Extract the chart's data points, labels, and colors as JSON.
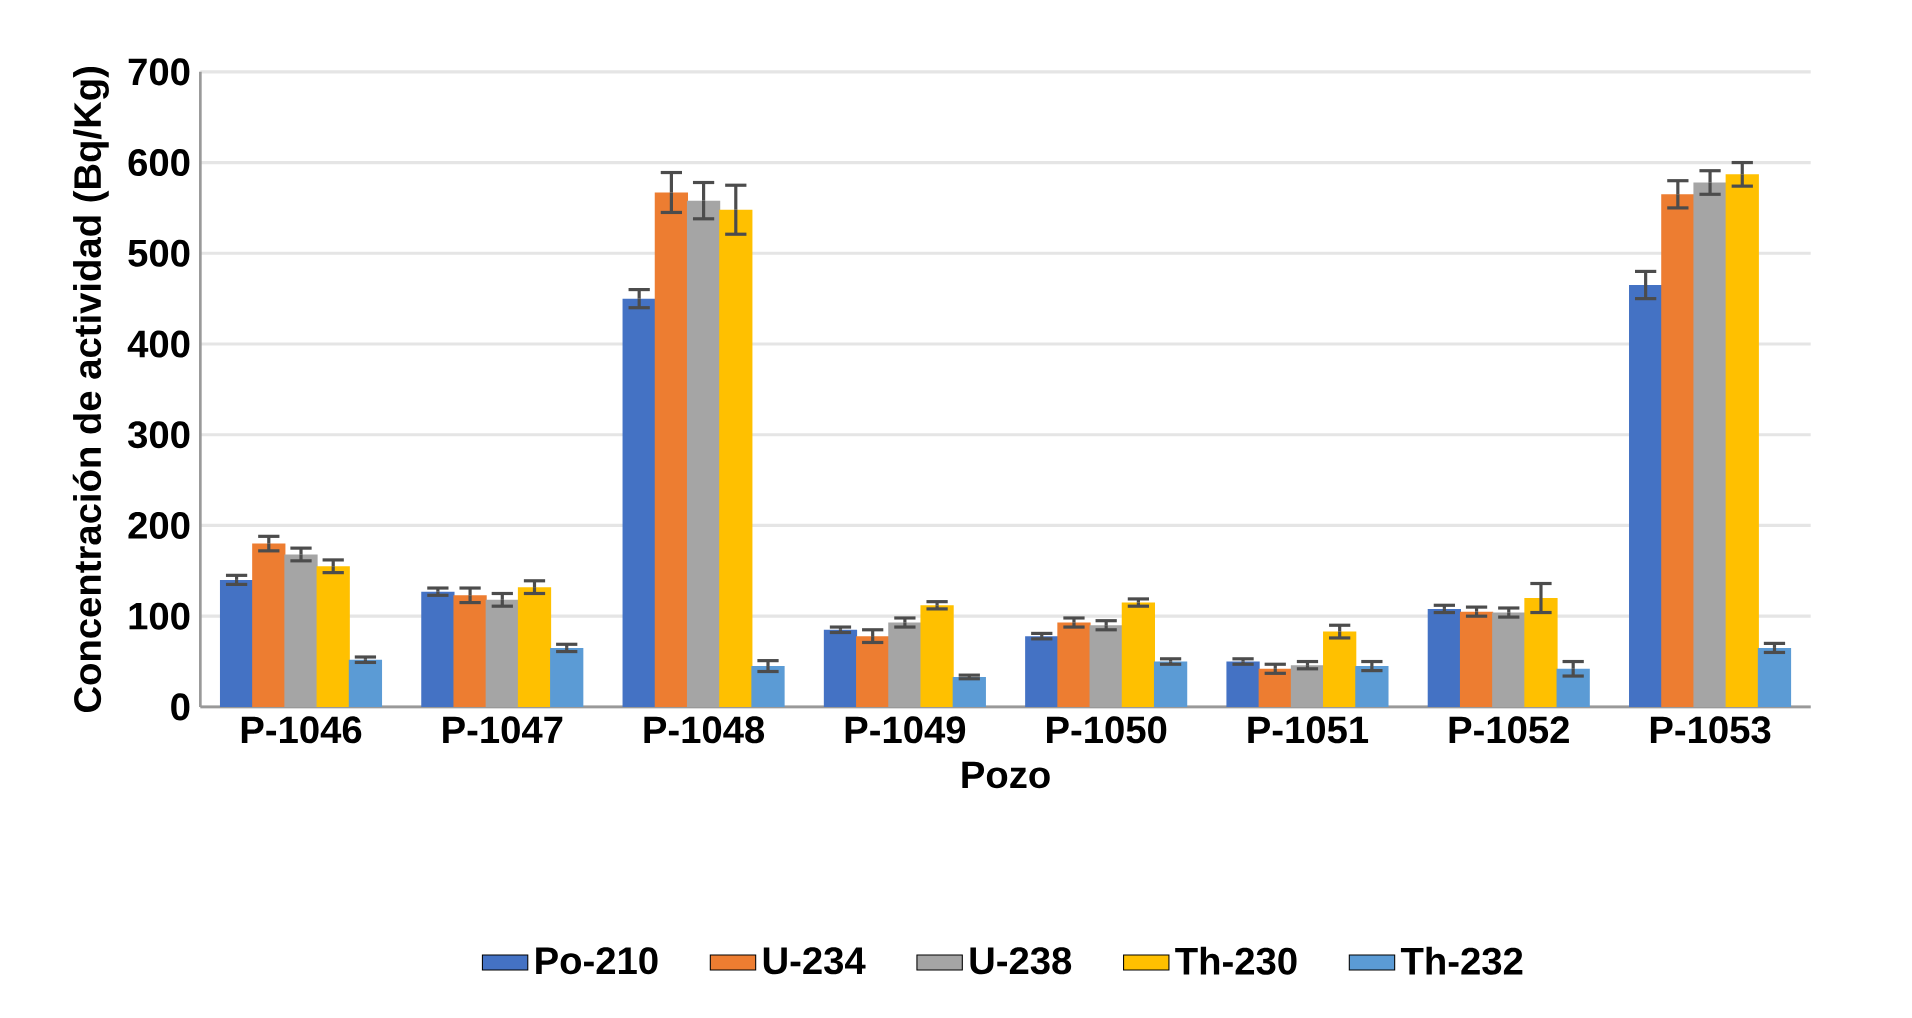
{
  "chart_data": {
    "type": "bar",
    "xlabel": "Pozo",
    "ylabel": "Concentración de actividad (Bq/Kg)",
    "categories": [
      "P-1046",
      "P-1047",
      "P-1048",
      "P-1049",
      "P-1050",
      "P-1051",
      "P-1052",
      "P-1053"
    ],
    "series": [
      {
        "name": "Po-210",
        "color": "#4472c4",
        "values": [
          140,
          127,
          450,
          85,
          78,
          50,
          108,
          465
        ],
        "errors": [
          5,
          4,
          10,
          3,
          3,
          3,
          4,
          15
        ]
      },
      {
        "name": "U-234",
        "color": "#ed7d31",
        "values": [
          180,
          123,
          567,
          78,
          93,
          42,
          105,
          565
        ],
        "errors": [
          8,
          8,
          22,
          7,
          5,
          5,
          5,
          15
        ]
      },
      {
        "name": "U-238",
        "color": "#a5a5a5",
        "values": [
          168,
          118,
          558,
          93,
          90,
          46,
          104,
          578
        ],
        "errors": [
          7,
          7,
          20,
          5,
          5,
          4,
          5,
          13
        ]
      },
      {
        "name": "Th-230",
        "color": "#ffc000",
        "values": [
          155,
          132,
          548,
          112,
          115,
          83,
          120,
          587
        ],
        "errors": [
          7,
          7,
          27,
          4,
          4,
          7,
          16,
          13
        ]
      },
      {
        "name": "Th-232",
        "color": "#5b9bd5",
        "values": [
          52,
          65,
          45,
          33,
          50,
          45,
          42,
          65
        ],
        "errors": [
          3,
          4,
          6,
          2,
          3,
          5,
          8,
          5
        ]
      }
    ],
    "ylim": [
      0,
      700
    ],
    "yticks": [
      0,
      100,
      200,
      300,
      400,
      500,
      600,
      700
    ],
    "grid": "y",
    "legend": "bottom"
  }
}
